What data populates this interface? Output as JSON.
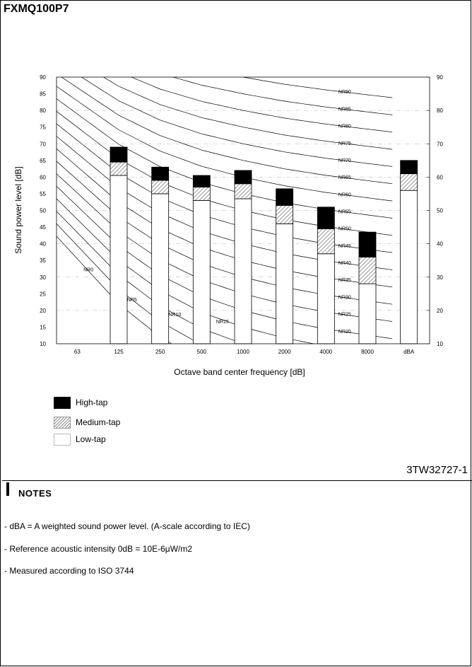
{
  "title": "FXMQ100P7",
  "doc_code": "3TW32727-1",
  "legend": [
    {
      "label": "High-tap",
      "key": "high"
    },
    {
      "label": "Medium-tap",
      "key": "medium"
    },
    {
      "label": "Low-tap",
      "key": "low"
    }
  ],
  "notes": {
    "heading": "NOTES",
    "items": [
      "- dBA = A weighted sound power level. (A-scale according to IEC)",
      "- Reference acoustic intensity 0dB = 10E-6μW/m2",
      "- Measured according to ISO 3744"
    ]
  },
  "colors": {
    "high": "#000000",
    "medium_hatch": "#808080",
    "low": "#ffffff"
  },
  "chart_data": {
    "type": "bar",
    "stacked": true,
    "xlabel": "Octave band center frequency [dB]",
    "ylabel": "Sound power level [dB]",
    "ylim": [
      10,
      90
    ],
    "yticks": [
      10,
      15,
      20,
      25,
      30,
      35,
      40,
      45,
      50,
      55,
      60,
      65,
      70,
      75,
      80,
      85,
      90
    ],
    "yticks_right": [
      10,
      20,
      30,
      40,
      50,
      60,
      70,
      80,
      90
    ],
    "categories": [
      "63",
      "125",
      "250",
      "500",
      "1000",
      "2000",
      "4000",
      "8000",
      "dBA"
    ],
    "series": [
      {
        "name": "Low-tap",
        "values": [
          null,
          60.5,
          55,
          53,
          53.5,
          46,
          37,
          28,
          56
        ]
      },
      {
        "name": "Medium-tap",
        "values": [
          null,
          64.5,
          59,
          57,
          58,
          51.5,
          44.5,
          36,
          61
        ]
      },
      {
        "name": "High-tap",
        "values": [
          null,
          69,
          63,
          60.5,
          62,
          56.5,
          51,
          43.5,
          65
        ]
      }
    ],
    "nr_curves": {
      "labels": [
        "NR90",
        "NR85",
        "NR80",
        "NR75",
        "NR70",
        "NR65",
        "NR60",
        "NR55",
        "NR50",
        "NR45",
        "NR40",
        "NR35",
        "NR30",
        "NR25",
        "NR20",
        "NR15",
        "NR10",
        "NR5",
        "NR0"
      ],
      "values": [
        90,
        85,
        80,
        75,
        70,
        65,
        60,
        55,
        50,
        45,
        40,
        35,
        30,
        25,
        20,
        15,
        10,
        5,
        0
      ]
    }
  }
}
